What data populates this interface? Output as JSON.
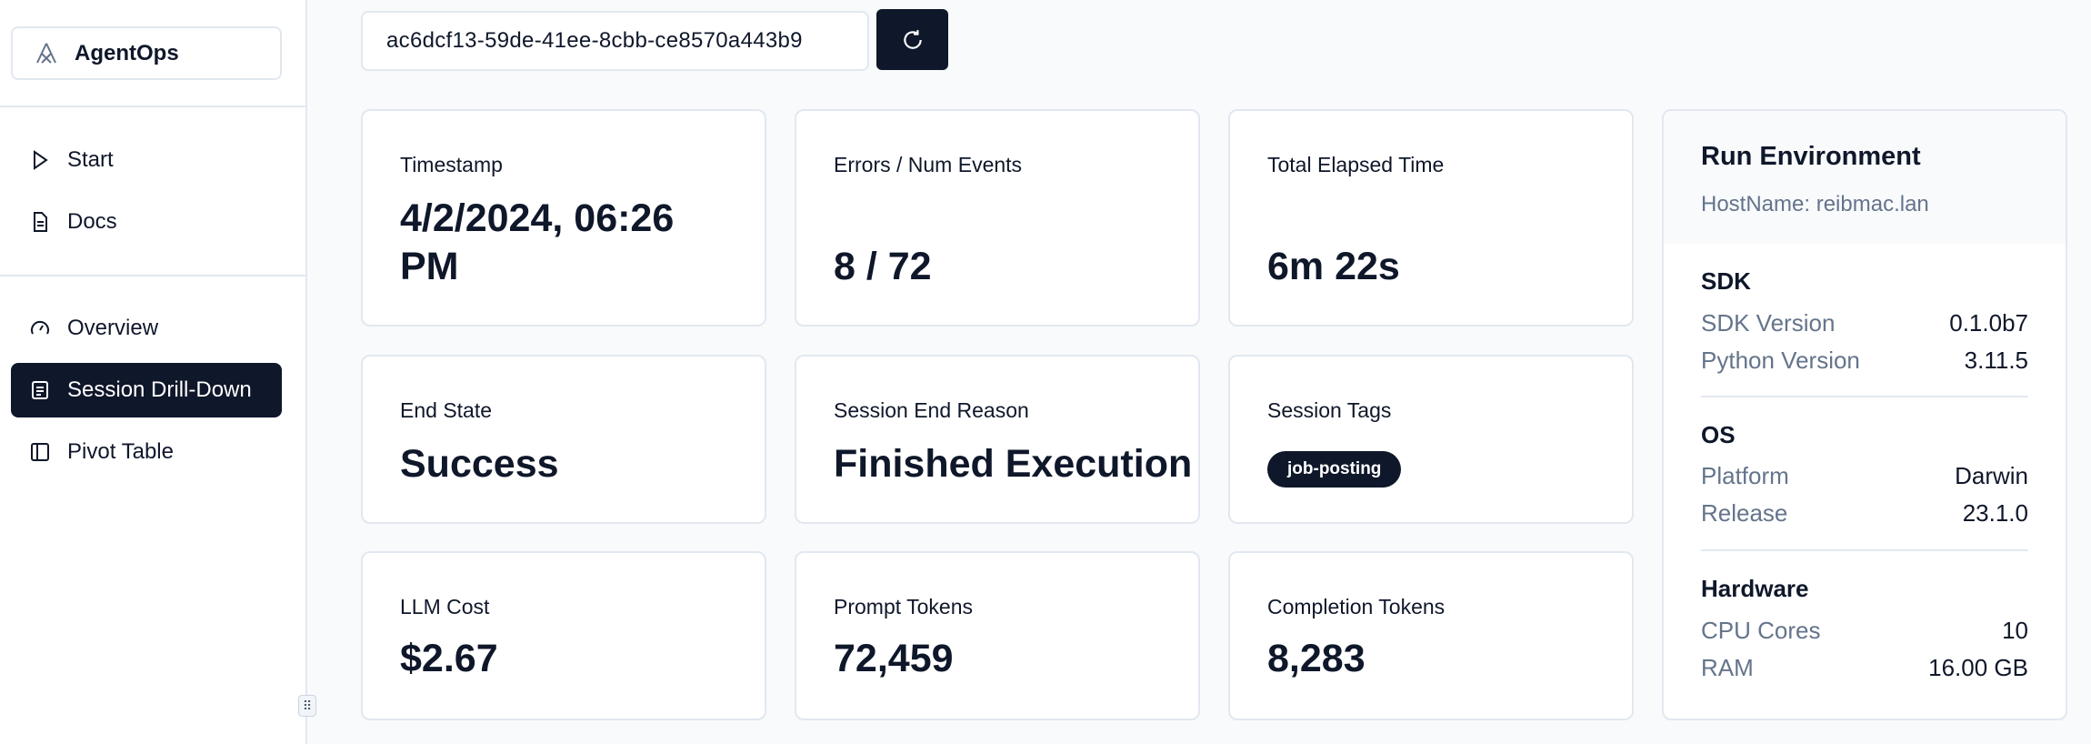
{
  "sidebar": {
    "brand": "AgentOps",
    "items": [
      {
        "label": "Start",
        "icon": "play-icon"
      },
      {
        "label": "Docs",
        "icon": "document-icon"
      },
      {
        "label": "Overview",
        "icon": "gauge-icon"
      },
      {
        "label": "Session Drill-Down",
        "icon": "list-icon",
        "active": true
      },
      {
        "label": "Pivot Table",
        "icon": "panel-icon"
      }
    ]
  },
  "session": {
    "id": "ac6dcf13-59de-41ee-8cbb-ce8570a443b9",
    "refresh_icon": "refresh-icon"
  },
  "cards": {
    "timestamp": {
      "label": "Timestamp",
      "value_line1": "4/2/2024, 06:26",
      "value_line2": "PM"
    },
    "errors": {
      "label": "Errors / Num Events",
      "value": "8 / 72"
    },
    "elapsed": {
      "label": "Total Elapsed Time",
      "value": "6m 22s"
    },
    "end_state": {
      "label": "End State",
      "value": "Success"
    },
    "end_reason": {
      "label": "Session End Reason",
      "value": "Finished Execution"
    },
    "tags": {
      "label": "Session Tags",
      "tags": [
        "job-posting"
      ]
    },
    "cost": {
      "label": "LLM Cost",
      "value": "$2.67"
    },
    "prompt": {
      "label": "Prompt Tokens",
      "value": "72,459"
    },
    "completion": {
      "label": "Completion Tokens",
      "value": "8,283"
    }
  },
  "env": {
    "title": "Run Environment",
    "hostname": "HostName: reibmac.lan",
    "sdk": {
      "title": "SDK",
      "rows": [
        {
          "k": "SDK Version",
          "v": "0.1.0b7"
        },
        {
          "k": "Python Version",
          "v": "3.11.5"
        }
      ]
    },
    "os": {
      "title": "OS",
      "rows": [
        {
          "k": "Platform",
          "v": "Darwin"
        },
        {
          "k": "Release",
          "v": "23.1.0"
        }
      ]
    },
    "hardware": {
      "title": "Hardware",
      "rows": [
        {
          "k": "CPU Cores",
          "v": "10"
        },
        {
          "k": "RAM",
          "v": "16.00 GB"
        }
      ]
    }
  }
}
